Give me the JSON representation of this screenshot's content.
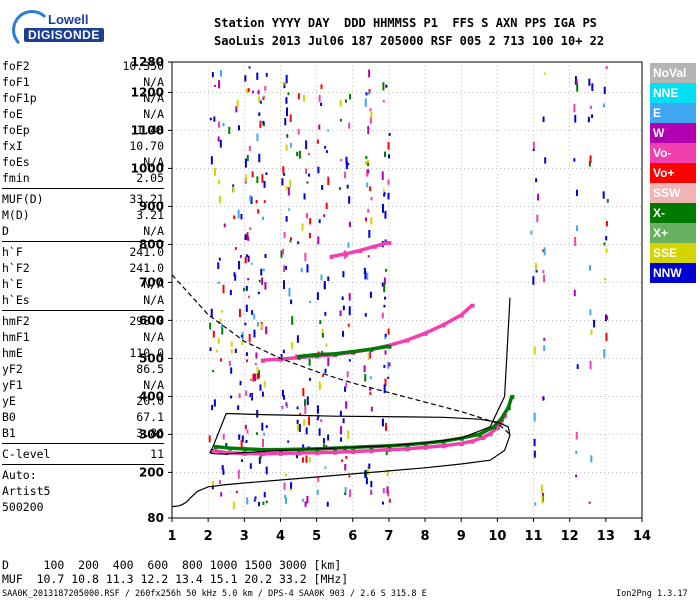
{
  "logo": {
    "line1": "Lowell",
    "line2": "DIGISONDE"
  },
  "header": {
    "row1": "Station YYYY DAY  DDD HHMMSS P1  FFS S AXN PPS IGA PS",
    "row2": "SaoLuis 2013 Jul06 187 205000 RSF 005 2 713 100 10+ 22"
  },
  "params_group1": [
    {
      "name": "foF2",
      "value": "10.350"
    },
    {
      "name": "foF1",
      "value": "N/A"
    },
    {
      "name": "foF1p",
      "value": "N/A"
    },
    {
      "name": "foE",
      "value": "N/A"
    },
    {
      "name": "foEp",
      "value": "1.48"
    },
    {
      "name": "fxI",
      "value": "10.70"
    },
    {
      "name": "foEs",
      "value": "N/A"
    },
    {
      "name": "fmin",
      "value": "2.05"
    }
  ],
  "params_group2": [
    {
      "name": "MUF(D)",
      "value": "33.21"
    },
    {
      "name": "M(D)",
      "value": "3.21"
    },
    {
      "name": "D",
      "value": "N/A"
    }
  ],
  "params_group3": [
    {
      "name": "h`F",
      "value": "241.0"
    },
    {
      "name": "h`F2",
      "value": "241.0"
    },
    {
      "name": "h`E",
      "value": "N/A"
    },
    {
      "name": "h`Es",
      "value": "N/A"
    }
  ],
  "params_group4": [
    {
      "name": "hmF2",
      "value": "298.0"
    },
    {
      "name": "hmF1",
      "value": "N/A"
    },
    {
      "name": "hmE",
      "value": "110.0"
    },
    {
      "name": "yF2",
      "value": "86.5"
    },
    {
      "name": "yF1",
      "value": "N/A"
    },
    {
      "name": "yE",
      "value": "20.0"
    },
    {
      "name": "B0",
      "value": "67.1"
    },
    {
      "name": "B1",
      "value": "3.86"
    }
  ],
  "params_group5": [
    {
      "name": "C-level",
      "value": "11"
    }
  ],
  "auto": {
    "l1": "Auto:",
    "l2": "Artist5",
    "l3": "500200"
  },
  "legend": [
    {
      "label": "NoVal",
      "color": "#b4b4b4"
    },
    {
      "label": "NNE",
      "color": "#00e0f0"
    },
    {
      "label": "E",
      "color": "#40a8f0"
    },
    {
      "label": "W",
      "color": "#b000b0"
    },
    {
      "label": "Vo-",
      "color": "#f040b0"
    },
    {
      "label": "Vo+",
      "color": "#ff0000"
    },
    {
      "label": "SSW",
      "color": "#f0b4b4"
    },
    {
      "label": "X-",
      "color": "#007a00"
    },
    {
      "label": "X+",
      "color": "#68b060"
    },
    {
      "label": "SSE",
      "color": "#d4d400"
    },
    {
      "label": "NNW",
      "color": "#0000d0"
    }
  ],
  "footer": {
    "d_row": "D     100  200  400  600  800 1000 1500 3000 [km]",
    "muf_row": "MUF  10.7 10.8 11.3 12.2 13.4 15.1 20.2 33.2 [MHz]",
    "info": "SAA0K_2013187205000.RSF / 260fx256h 50 kHz 5.0 km / DPS-4 SAA0K 903 / 2.6 S 315.8 E",
    "version": "Ion2Png 1.3.17"
  },
  "chart_data": {
    "type": "scatter",
    "title": "",
    "xlabel": "",
    "ylabel": "",
    "xlim": [
      1,
      14
    ],
    "ylim": [
      80,
      1280
    ],
    "x_ticks": [
      1,
      2,
      3,
      4,
      5,
      6,
      7,
      8,
      9,
      10,
      11,
      12,
      13,
      14
    ],
    "y_ticks": [
      80,
      200,
      300,
      400,
      500,
      600,
      700,
      800,
      900,
      1000,
      1100,
      1200,
      1280
    ],
    "grid": true,
    "series": [
      {
        "color": "#f040b0",
        "style": "points",
        "x": [
          2.1,
          2.5,
          3,
          3.5,
          4,
          4.5,
          5,
          5.5,
          6,
          6.5,
          7,
          7.5,
          8,
          8.5,
          9,
          9.3,
          9.6,
          9.8,
          10,
          10.1,
          10.2
        ],
        "y": [
          258,
          252,
          250,
          249,
          250,
          251,
          252,
          253,
          255,
          257,
          260,
          262,
          266,
          270,
          276,
          282,
          292,
          302,
          318,
          332,
          350
        ]
      },
      {
        "color": "#007a00",
        "style": "points",
        "x": [
          2.2,
          2.6,
          3,
          3.5,
          4,
          4.5,
          5,
          5.5,
          6,
          6.5,
          7,
          7.5,
          8,
          8.5,
          9,
          9.5,
          9.9,
          10.1,
          10.3,
          10.4
        ],
        "y": [
          268,
          264,
          262,
          260,
          260,
          261,
          262,
          264,
          266,
          268,
          270,
          273,
          277,
          282,
          290,
          300,
          320,
          340,
          370,
          400
        ]
      },
      {
        "color": "#f040b0",
        "style": "points",
        "x": [
          3.5,
          4,
          4.5,
          5,
          5.5,
          6,
          6.5,
          7,
          7.5,
          8,
          8.5,
          9,
          9.3
        ],
        "y": [
          495,
          498,
          502,
          506,
          510,
          516,
          524,
          534,
          548,
          566,
          588,
          614,
          640
        ]
      },
      {
        "color": "#007a00",
        "style": "points",
        "x": [
          4.5,
          5,
          5.5,
          6,
          6.5,
          7
        ],
        "y": [
          505,
          510,
          512,
          518,
          524,
          532
        ]
      },
      {
        "color": "#f040b0",
        "style": "points",
        "x": [
          5.4,
          5.8,
          6.2,
          6.6,
          7
        ],
        "y": [
          768,
          775,
          784,
          795,
          805
        ]
      },
      {
        "color": "#000000",
        "style": "line",
        "x": [
          1.0,
          1.2,
          1.3,
          1.4,
          1.5,
          1.7,
          2.0,
          2.5,
          3.0,
          4.0,
          5.0,
          6.0,
          7.0,
          8.0,
          9.0,
          9.8,
          10.2,
          10.35,
          10.3,
          10.0,
          9.5,
          8.5,
          7.5,
          6.5,
          5.5,
          4.5,
          3.5,
          2.5,
          2.1,
          2.05,
          2.1,
          2.2,
          2.5,
          3,
          4,
          5,
          6,
          7,
          8,
          9,
          9.8,
          10.2,
          10.35
        ],
        "y": [
          110,
          112,
          116,
          122,
          132,
          150,
          162,
          168,
          172,
          180,
          188,
          196,
          204,
          212,
          222,
          232,
          258,
          298,
          320,
          332,
          340,
          345,
          346,
          347,
          348,
          350,
          352,
          355,
          260,
          252,
          250,
          249,
          248,
          252,
          258,
          262,
          266,
          270,
          278,
          290,
          320,
          400,
          660
        ]
      },
      {
        "color": "#000000",
        "style": "dashed",
        "x": [
          1,
          2,
          3,
          4,
          5,
          6,
          7,
          8,
          9,
          10,
          10.35
        ],
        "y": [
          720,
          615,
          545,
          500,
          465,
          435,
          410,
          385,
          360,
          330,
          300
        ]
      }
    ]
  }
}
